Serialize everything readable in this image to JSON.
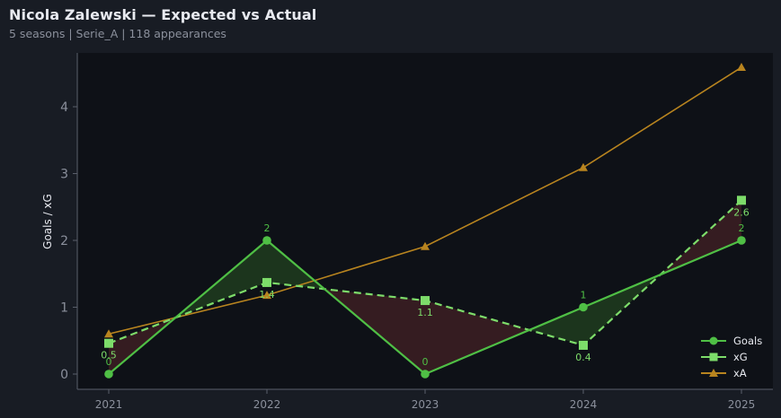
{
  "header": {
    "title": "Nicola Zalewski — Expected vs Actual",
    "subtitle": "5 seasons | Serie_A | 118 appearances"
  },
  "colors": {
    "background": "#181c24",
    "plot_background": "#0e1117",
    "axis": "#5a5f6b",
    "goals": "#4fbf45",
    "xg": "#7ddc6a",
    "xa": "#b8841f",
    "overperform_fill": "#1e3a1e",
    "underperform_fill": "#3a1e22"
  },
  "chart_data": {
    "type": "line",
    "title": "Nicola Zalewski — Expected vs Actual",
    "subtitle": "5 seasons | Serie_A | 118 appearances",
    "xlabel": "",
    "ylabel": "Goals / xG",
    "categories": [
      "2021",
      "2022",
      "2023",
      "2024",
      "2025"
    ],
    "yticks": [
      0,
      1,
      2,
      3,
      4
    ],
    "ylim": [
      -0.22,
      4.8
    ],
    "grid": false,
    "legend_position": "lower right",
    "series": [
      {
        "name": "Goals",
        "values": [
          0,
          2,
          0,
          1,
          2
        ],
        "labels": [
          "0",
          "2",
          "0",
          "1",
          "2"
        ],
        "marker": "circle",
        "style": "solid"
      },
      {
        "name": "xG",
        "values": [
          0.46,
          1.37,
          1.1,
          0.43,
          2.6
        ],
        "labels": [
          "0.5",
          "1.4",
          "1.1",
          "0.4",
          "2.6"
        ],
        "marker": "square",
        "style": "dashed"
      },
      {
        "name": "xA",
        "values": [
          0.6,
          1.18,
          1.91,
          3.09,
          4.59
        ],
        "marker": "triangle",
        "style": "solid"
      }
    ],
    "annotations": "Shaded region between Goals and xG: green where Goals > xG, red where Goals < xG"
  },
  "legend": {
    "items": [
      {
        "label": "Goals"
      },
      {
        "label": "xG"
      },
      {
        "label": "xA"
      }
    ]
  }
}
